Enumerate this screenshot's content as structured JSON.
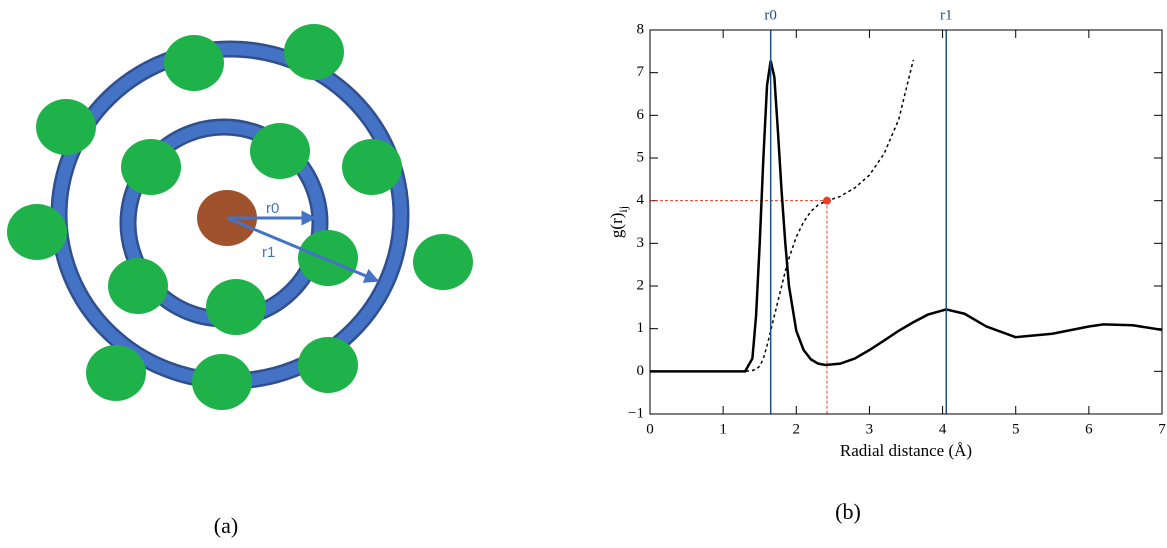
{
  "diagram": {
    "caption": "(a)",
    "labels": [
      "r0",
      "r1"
    ]
  },
  "chart_data": {
    "type": "line",
    "caption": "(b)",
    "xlabel": "Radial distance (Å)",
    "ylabel": "g(r)",
    "ylabel_sub": "ij",
    "xlim": [
      0,
      7
    ],
    "ylim": [
      -1,
      8
    ],
    "xticks": [
      0,
      1,
      2,
      3,
      4,
      5,
      6,
      7
    ],
    "yticks": [
      {
        "value": -1,
        "label": "−1"
      },
      0,
      1,
      2,
      3,
      4,
      5,
      6,
      7,
      8
    ],
    "x": [
      0,
      1.0,
      1.3,
      1.4,
      1.45,
      1.5,
      1.55,
      1.6,
      1.65,
      1.7,
      1.75,
      1.8,
      1.85,
      1.9,
      2.0,
      2.1,
      2.2,
      2.3,
      2.4,
      2.6,
      2.8,
      3.0,
      3.2,
      3.4,
      3.6,
      3.8,
      4.05,
      4.3,
      4.6,
      5.0,
      5.5,
      6.0,
      6.2,
      6.6,
      7.0
    ],
    "series": [
      {
        "color": "#000000",
        "dash": false,
        "values": [
          0,
          0,
          0,
          0.3,
          1.3,
          3.0,
          5.0,
          6.7,
          7.28,
          6.9,
          5.6,
          4.2,
          3.0,
          2.0,
          0.95,
          0.5,
          0.28,
          0.18,
          0.15,
          0.18,
          0.3,
          0.5,
          0.72,
          0.95,
          1.15,
          1.33,
          1.45,
          1.35,
          1.05,
          0.8,
          0.88,
          1.05,
          1.1,
          1.08,
          0.97
        ]
      },
      {
        "color": "#000000",
        "dash": true,
        "values": [
          0,
          0,
          0,
          0.02,
          0.05,
          0.12,
          0.3,
          0.6,
          0.95,
          1.3,
          1.65,
          2.0,
          2.35,
          2.65,
          3.15,
          3.5,
          3.75,
          3.9,
          3.98,
          4.1,
          4.3,
          4.6,
          5.1,
          5.9,
          7.3,
          null,
          null,
          null,
          null,
          null,
          null,
          null,
          null,
          null,
          null
        ]
      }
    ],
    "vlines": [
      {
        "label": "r0",
        "value": 1.65,
        "color": "#1f4e8c"
      },
      {
        "label": "r1",
        "value": 4.05,
        "color": "#1f4e8c"
      }
    ],
    "marker": {
      "x": 2.42,
      "y": 4,
      "color": "#e8412a"
    }
  }
}
